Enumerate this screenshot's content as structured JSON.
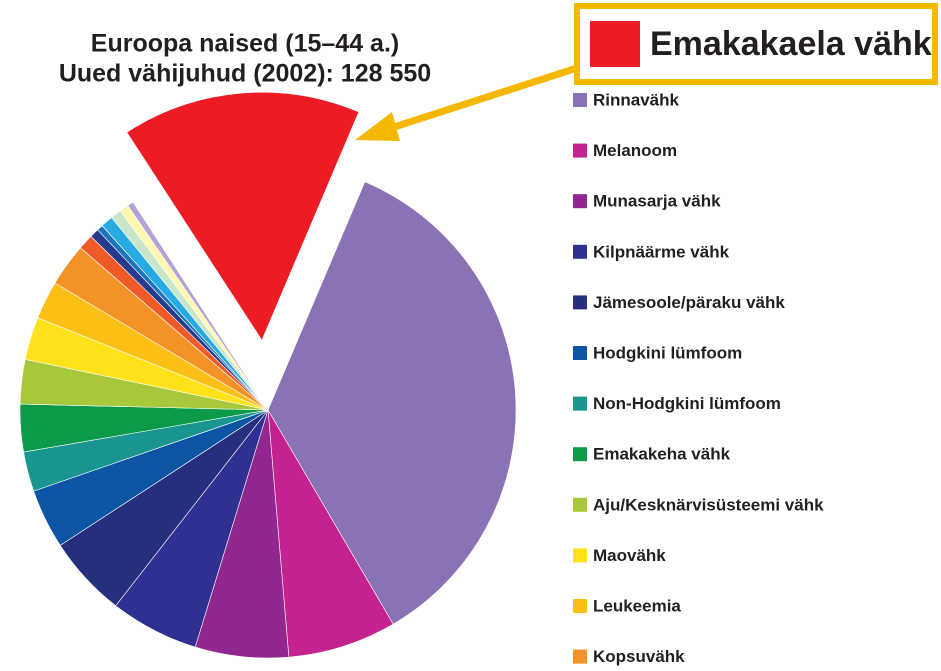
{
  "chart_data": {
    "type": "pie",
    "title": "Euroopa naised (15–44 a.)",
    "subtitle": "Uued vähijuhud (2002): 128 550",
    "categories": [
      "Emakakaela vähk",
      "Rinnavähk",
      "Melanoom",
      "Munasarja vähk",
      "Kilpnäärme vähk",
      "Jämesoole/päraku vähk",
      "Hodgkini lümfoom",
      "Non-Hodgkini lümfoom",
      "Emakakeha vähk",
      "Aju/Kesknärvisüsteemi vähk",
      "Maovähk",
      "Leukeemia",
      "Kopsuvähk",
      null,
      null,
      null,
      null,
      null,
      null,
      null
    ],
    "values": [
      15.6,
      35.3,
      7.1,
      6.1,
      5.8,
      5.3,
      3.9,
      2.6,
      3.1,
      2.9,
      2.8,
      2.5,
      2.8,
      1.0,
      0.6,
      0.4,
      0.8,
      0.7,
      0.6,
      0.4
    ],
    "colors": [
      "#ed1c24",
      "#8a72b5",
      "#c4238f",
      "#92278f",
      "#2e3192",
      "#262f7e",
      "#0b55a4",
      "#1a9590",
      "#0b9a4a",
      "#a6c83a",
      "#ffe21a",
      "#fbbf16",
      "#f39226",
      "#ef5a28",
      "#263a8e",
      "#1b75bc",
      "#27aae1",
      "#c8e6c9",
      "#fff6b0",
      "#b3a2d6"
    ]
  }
}
